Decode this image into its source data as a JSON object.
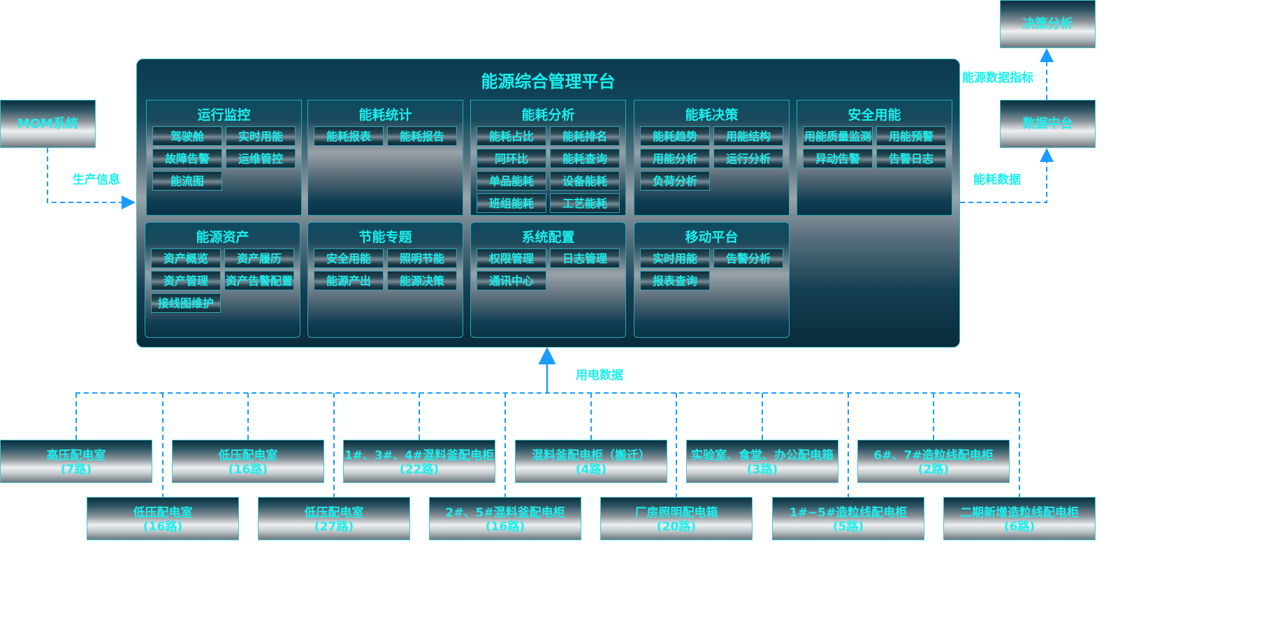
{
  "platform": {
    "title": "能源综合管理平台",
    "modules": [
      {
        "title": "运行监控",
        "items": [
          "驾驶舱",
          "实时用能",
          "故障告警",
          "运维管控",
          "能流图"
        ]
      },
      {
        "title": "能耗统计",
        "items": [
          "能耗报表",
          "能耗报告"
        ]
      },
      {
        "title": "能耗分析",
        "items": [
          "能耗占比",
          "能耗排名",
          "同环比",
          "能耗查询",
          "单品能耗",
          "设备能耗",
          "班组能耗",
          "工艺能耗"
        ]
      },
      {
        "title": "能耗决策",
        "items": [
          "能耗趋势",
          "用能结构",
          "用能分析",
          "运行分析",
          "负荷分析"
        ]
      },
      {
        "title": "安全用能",
        "items": [
          "用能质量监测",
          "用能预警",
          "异动告警",
          "告警日志"
        ]
      },
      {
        "title": "能源资产",
        "items": [
          "资产概览",
          "资产履历",
          "资产管理",
          "资产告警配置",
          "接线图维护"
        ]
      },
      {
        "title": "节能专题",
        "items": [
          "安全用能",
          "照明节能",
          "能源产出",
          "能源决策"
        ]
      },
      {
        "title": "系统配置",
        "items": [
          "权限管理",
          "日志管理",
          "通讯中心"
        ]
      },
      {
        "title": "移动平台",
        "items": [
          "实时用能",
          "告警分析",
          "报表查询"
        ]
      }
    ]
  },
  "external": {
    "mom": "MOM系统",
    "data_center": "数据中台",
    "decision": "决策分析"
  },
  "flows": {
    "production_info": "生产信息",
    "energy_data": "能耗数据",
    "energy_indicators": "能源数据指标",
    "power_data": "用电数据"
  },
  "sources": {
    "row1": [
      {
        "name": "高压配电室",
        "count": "(7路)"
      },
      {
        "name": "低压配电室",
        "count": "(16路)"
      },
      {
        "name": "1#、3#、4#混料釜配电柜",
        "count": "(22路)"
      },
      {
        "name": "混料釜配电柜（搬迁）",
        "count": "(4路)"
      },
      {
        "name": "实验室、食堂、办公配电箱",
        "count": "(3路)"
      },
      {
        "name": "6#、7#造粒线配电柜",
        "count": "(2路)"
      }
    ],
    "row2": [
      {
        "name": "低压配电室",
        "count": "(16路)"
      },
      {
        "name": "低压配电室",
        "count": "(27路)"
      },
      {
        "name": "2#、5#混料釜配电柜",
        "count": "(16路)"
      },
      {
        "name": "厂房照明配电箱",
        "count": "(20路)"
      },
      {
        "name": "1#~5#造粒线配电柜",
        "count": "(5路)"
      },
      {
        "name": "二期新增造粒线配电柜",
        "count": "(6路)"
      }
    ]
  },
  "colors": {
    "text": "#19f0ee",
    "line": "#1a9cff"
  }
}
